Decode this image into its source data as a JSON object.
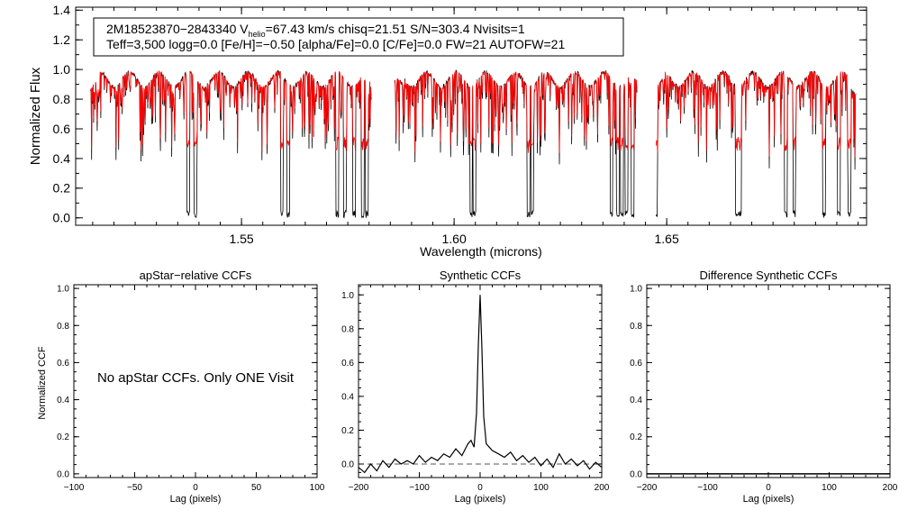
{
  "chart_data": [
    {
      "type": "line",
      "id": "spectrum",
      "title_lines": [
        {
          "parts": [
            "2M18523870−2843340  V",
            "helio",
            "=67.43 km/s  chisq=21.51  S/N=303.4  Nvisits=1"
          ]
        },
        {
          "text": "Teff=3,500 logg=0.0 [Fe/H]=−0.50 [alpha/Fe]=0.0 [C/Fe]=0.0 FW=21 AUTOFW=21"
        }
      ],
      "xlabel": "Wavelength (microns)",
      "ylabel": "Normalized Flux",
      "xlim": [
        1.511,
        1.697
      ],
      "ylim": [
        -0.05,
        1.42
      ],
      "xticks": [
        1.55,
        1.6,
        1.65
      ],
      "xtick_labels": [
        "1.55",
        "1.60",
        "1.65"
      ],
      "yticks": [
        0.0,
        0.2,
        0.4,
        0.6,
        0.8,
        1.0,
        1.2,
        1.4
      ],
      "ytick_labels": [
        "0.0",
        "0.2",
        "0.4",
        "0.6",
        "0.8",
        "1.0",
        "1.2",
        "1.4"
      ],
      "chips": [
        [
          1.5145,
          1.5805
        ],
        [
          1.586,
          1.643
        ],
        [
          1.6475,
          1.6945
        ]
      ],
      "deep_lines": [
        1.5375,
        1.5392,
        1.5595,
        1.561,
        1.5725,
        1.5743,
        1.5765,
        1.5785,
        1.5795,
        1.604,
        1.6048,
        1.6175,
        1.6184,
        1.637,
        1.6385,
        1.6395,
        1.6405,
        1.642,
        1.6475,
        1.6665,
        1.6672,
        1.678,
        1.68,
        1.687,
        1.6905,
        1.693
      ],
      "series": [
        {
          "name": "data",
          "color": "#000000"
        },
        {
          "name": "best-fit model",
          "color": "#ff0000"
        }
      ]
    },
    {
      "type": "line",
      "id": "apstar",
      "title": "apStar−relative CCFs",
      "xlabel": "Lag (pixels)",
      "ylabel": "Normalized CCF",
      "xlim": [
        -100,
        100
      ],
      "ylim": [
        -0.02,
        1.02
      ],
      "xticks": [
        -100,
        -50,
        0,
        50,
        100
      ],
      "xtick_labels": [
        "−100",
        "−50",
        "0",
        "50",
        "100"
      ],
      "yticks": [
        0.0,
        0.2,
        0.4,
        0.6,
        0.8,
        1.0
      ],
      "ytick_labels": [
        "0.0",
        "0.2",
        "0.4",
        "0.6",
        "0.8",
        "1.0"
      ],
      "message": "No apStar CCFs.  Only ONE Visit"
    },
    {
      "type": "line",
      "id": "synthetic",
      "title": "Synthetic CCFs",
      "xlabel": "Lag (pixels)",
      "ylabel": "",
      "xlim": [
        -200,
        200
      ],
      "ylim": [
        -0.08,
        1.06
      ],
      "xticks": [
        -200,
        -100,
        0,
        100,
        200
      ],
      "xtick_labels": [
        "−200",
        "−100",
        "0",
        "100",
        "200"
      ],
      "yticks": [
        0.0,
        0.2,
        0.4,
        0.6,
        0.8,
        1.0
      ],
      "ytick_labels": [
        "0.0",
        "0.2",
        "0.4",
        "0.6",
        "0.8",
        "1.0"
      ],
      "baseline": 0.0,
      "peak": {
        "lag": 0,
        "value": 1.0
      },
      "series": [
        {
          "name": "ccf",
          "x": [
            -200,
            -190,
            -180,
            -170,
            -160,
            -150,
            -140,
            -130,
            -120,
            -110,
            -100,
            -90,
            -80,
            -70,
            -60,
            -50,
            -40,
            -30,
            -20,
            -15,
            -10,
            -6,
            -3,
            0,
            3,
            6,
            10,
            15,
            20,
            30,
            40,
            50,
            60,
            70,
            80,
            90,
            100,
            110,
            120,
            130,
            140,
            150,
            160,
            170,
            180,
            190,
            200
          ],
          "y": [
            -0.02,
            -0.05,
            0.0,
            -0.04,
            0.02,
            -0.02,
            0.03,
            0.0,
            0.02,
            0.0,
            0.05,
            0.01,
            0.04,
            0.02,
            0.06,
            0.04,
            0.09,
            0.05,
            0.12,
            0.14,
            0.1,
            0.3,
            0.7,
            1.0,
            0.68,
            0.28,
            0.12,
            0.1,
            0.08,
            0.06,
            0.04,
            0.07,
            0.02,
            0.05,
            0.01,
            0.04,
            -0.01,
            0.03,
            -0.02,
            0.06,
            0.0,
            0.03,
            -0.01,
            0.02,
            -0.03,
            0.01,
            -0.02
          ]
        }
      ]
    },
    {
      "type": "line",
      "id": "difference",
      "title": "Difference Synthetic CCFs",
      "xlabel": "Lag (pixels)",
      "ylabel": "",
      "xlim": [
        -200,
        200
      ],
      "ylim": [
        -0.02,
        1.02
      ],
      "xticks": [
        -200,
        -100,
        0,
        100,
        200
      ],
      "xtick_labels": [
        "−200",
        "−100",
        "0",
        "100",
        "200"
      ],
      "yticks": [
        0.0,
        0.2,
        0.4,
        0.6,
        0.8,
        1.0
      ],
      "ytick_labels": [
        "0.0",
        "0.2",
        "0.4",
        "0.6",
        "0.8",
        "1.0"
      ],
      "series": [
        {
          "name": "difference",
          "x": [
            -200,
            200
          ],
          "y": [
            0.0,
            0.0
          ]
        }
      ]
    }
  ]
}
